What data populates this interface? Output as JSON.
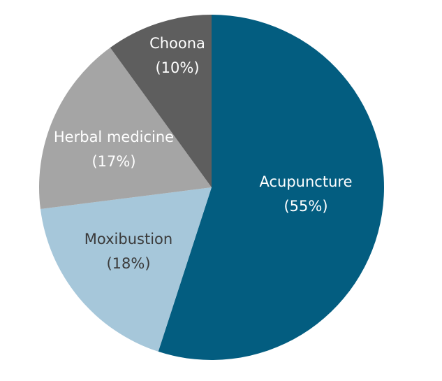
{
  "chart_data": {
    "type": "pie",
    "title": "",
    "slices": [
      {
        "label": "Acupuncture",
        "pct_label": "(55%)",
        "value": 55,
        "color": "#035d80",
        "text_color": "#ffffff"
      },
      {
        "label": "Moxibustion",
        "pct_label": "(18%)",
        "value": 18,
        "color": "#a6c7da",
        "text_color": "#3a3a3a"
      },
      {
        "label": "Herbal medicine",
        "pct_label": "(17%)",
        "value": 17,
        "color": "#a5a5a5",
        "text_color": "#ffffff"
      },
      {
        "label": "Choona",
        "pct_label": "(10%)",
        "value": 10,
        "color": "#5e5e5e",
        "text_color": "#ffffff"
      }
    ],
    "start_angle": "12 o'clock",
    "direction": "clockwise",
    "legend": "none"
  }
}
